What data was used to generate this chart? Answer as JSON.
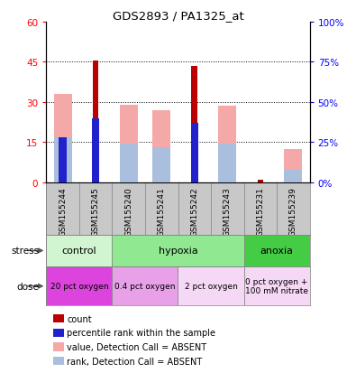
{
  "title": "GDS2893 / PA1325_at",
  "samples": [
    "GSM155244",
    "GSM155245",
    "GSM155240",
    "GSM155241",
    "GSM155242",
    "GSM155243",
    "GSM155231",
    "GSM155239"
  ],
  "count_values": [
    0,
    45.5,
    0,
    0,
    43.5,
    0,
    1,
    0
  ],
  "rank_values": [
    28,
    40,
    0,
    0,
    37,
    0,
    0,
    0
  ],
  "pink_bar_tops": [
    33,
    0,
    29,
    27,
    0,
    28.5,
    0,
    12.5
  ],
  "blue_bar_tops": [
    28,
    0,
    24,
    22,
    0,
    24,
    0,
    8
  ],
  "ylim_left": [
    0,
    60
  ],
  "ylim_right": [
    0,
    100
  ],
  "yticks_left": [
    0,
    15,
    30,
    45,
    60
  ],
  "yticks_right": [
    0,
    25,
    50,
    75,
    100
  ],
  "ytick_labels_left": [
    "0",
    "15",
    "30",
    "45",
    "60"
  ],
  "ytick_labels_right": [
    "0%",
    "25%",
    "50%",
    "75%",
    "100%"
  ],
  "stress_groups": [
    {
      "label": "control",
      "start": 0,
      "end": 2,
      "color": "#d0f5d0"
    },
    {
      "label": "hypoxia",
      "start": 2,
      "end": 6,
      "color": "#90e890"
    },
    {
      "label": "anoxia",
      "start": 6,
      "end": 8,
      "color": "#44cc44"
    }
  ],
  "dose_groups": [
    {
      "label": "20 pct oxygen",
      "start": 0,
      "end": 2,
      "color": "#dd44dd"
    },
    {
      "label": "0.4 pct oxygen",
      "start": 2,
      "end": 4,
      "color": "#e8a0e8"
    },
    {
      "label": "2 pct oxygen",
      "start": 4,
      "end": 6,
      "color": "#f5d8f5"
    },
    {
      "label": "0 pct oxygen +\n100 mM nitrate",
      "start": 6,
      "end": 8,
      "color": "#f5d8f5"
    }
  ],
  "color_count": "#bb0000",
  "color_rank": "#2222cc",
  "color_pink": "#f5a8a8",
  "color_blue": "#aabedd",
  "legend_items": [
    {
      "color": "#bb0000",
      "label": "count"
    },
    {
      "color": "#2222cc",
      "label": "percentile rank within the sample"
    },
    {
      "color": "#f5a8a8",
      "label": "value, Detection Call = ABSENT"
    },
    {
      "color": "#aabedd",
      "label": "rank, Detection Call = ABSENT"
    }
  ]
}
